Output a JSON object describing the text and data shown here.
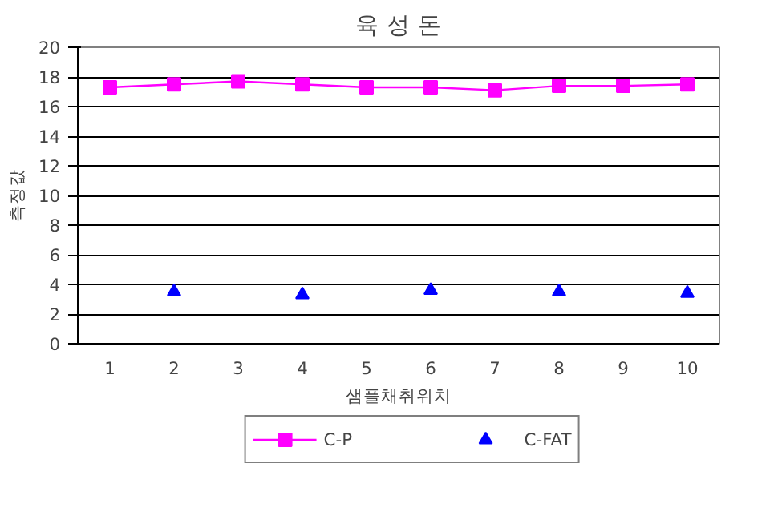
{
  "chart_data": {
    "type": "line",
    "title": "육 성 돈",
    "xlabel": "샘플채취위치",
    "ylabel": "측정값",
    "categories": [
      "1",
      "2",
      "3",
      "4",
      "5",
      "6",
      "7",
      "8",
      "9",
      "10"
    ],
    "series": [
      {
        "name": "C-P",
        "color": "#ff00ff",
        "marker": "square",
        "values": [
          17.3,
          17.5,
          17.7,
          17.5,
          17.3,
          17.3,
          17.1,
          17.4,
          17.4,
          17.5
        ]
      },
      {
        "name": "C-FAT",
        "color": "#0000ff",
        "type": "scatter",
        "marker": "triangle",
        "values": [
          null,
          3.5,
          null,
          3.3,
          null,
          3.6,
          null,
          3.5,
          null,
          3.4
        ]
      }
    ],
    "ylim": [
      0,
      20
    ],
    "yticks": [
      0,
      2,
      4,
      6,
      8,
      10,
      12,
      14,
      16,
      18,
      20
    ],
    "grid": "y",
    "legend": "bottom"
  }
}
